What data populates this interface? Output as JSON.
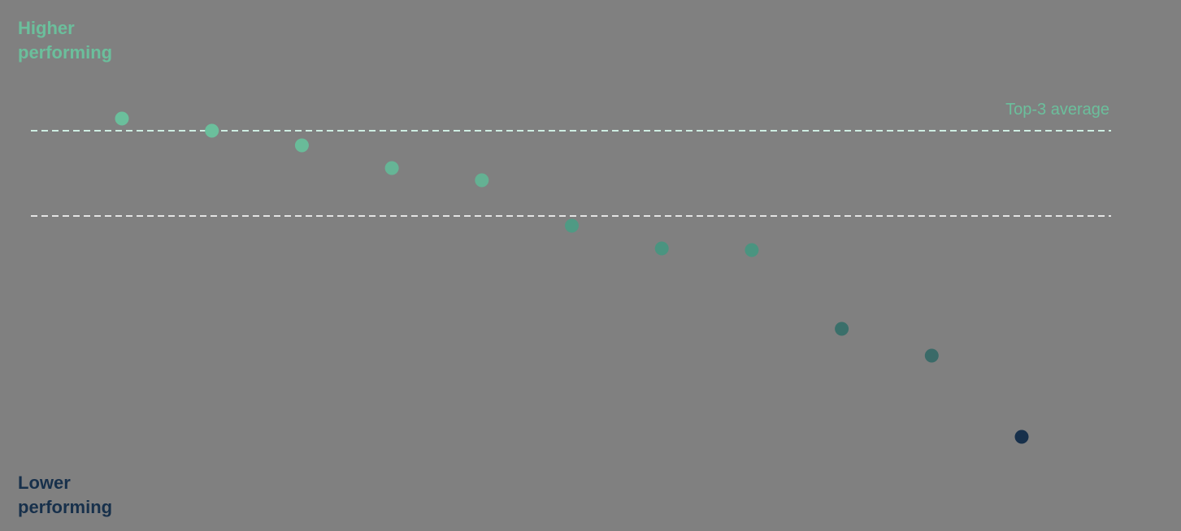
{
  "chart_data": {
    "type": "dot",
    "top_label": "Higher performing",
    "bottom_label": "Lower performing",
    "values": [
      45.4,
      43.9,
      42.1,
      39.3,
      37.8,
      32.2,
      29.4,
      29.2,
      19.5,
      16.2,
      6.2
    ],
    "colors": [
      "#6bbf9c",
      "#6bbf9c",
      "#69bb99",
      "#66b596",
      "#64b193",
      "#4f9a84",
      "#4a9480",
      "#4a9480",
      "#3a6f6a",
      "#3a6a68",
      "#17304b"
    ],
    "reference_lines": [
      {
        "name": "Top-3 average",
        "value": 43.9,
        "color": "#cfeee2"
      },
      {
        "value": 33.4,
        "color": "#e4e4e4"
      }
    ],
    "top_color": "#6bbf9c",
    "bottom_color": "#17304b"
  }
}
